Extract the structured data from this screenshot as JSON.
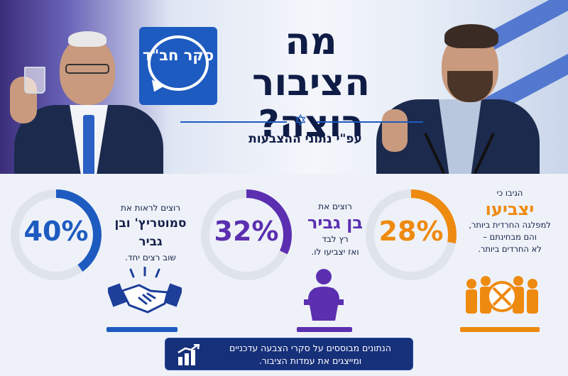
{
  "header": {
    "logo_text": "סקר חב\"ד",
    "title": "מה הציבור רוצה?",
    "subtitle": "עפ\"י נתוני ההצבעות"
  },
  "panels": [
    {
      "id": "smotrich-ben-gvir",
      "value": 40,
      "pct_label": "40%",
      "color": "#1d5bc0",
      "line1": "רוצים לראות את",
      "big": "סמוטריץ' ובן גביר",
      "line2": "שוב רצים יחד."
    },
    {
      "id": "ben-gvir",
      "value": 32,
      "pct_label": "32%",
      "color": "#5b2fb0",
      "line1": "רוצים את",
      "big": "בן גביר",
      "line2": "רץ לבד",
      "line3": "ואז יצביעו לו."
    },
    {
      "id": "vote-haredi",
      "value": 28,
      "pct_label": "28%",
      "color": "#ee8a10",
      "line1": "הגיבו כי",
      "big": "יצביעו",
      "line2": "למפלגה החרדית ביותר,",
      "line3": "והם מבחינתם –",
      "line4": "לא החרדים ביותר."
    }
  ],
  "footer": {
    "text": "הנתונים מבוססים על סקרי הצבעה עדכניים ומייצגים את עמדות הציבור."
  },
  "chart_data": {
    "type": "pie",
    "categories": [
      "סמוטריץ' ובן גביר",
      "בן גביר",
      "יצביעו"
    ],
    "values": [
      40,
      32,
      28
    ],
    "unit": "%",
    "title": "מה הציבור רוצה?",
    "subtitle": "עפ\"י נתוני ההצבעות",
    "colors": [
      "#1d5bc0",
      "#5b2fb0",
      "#ee8a10"
    ]
  }
}
